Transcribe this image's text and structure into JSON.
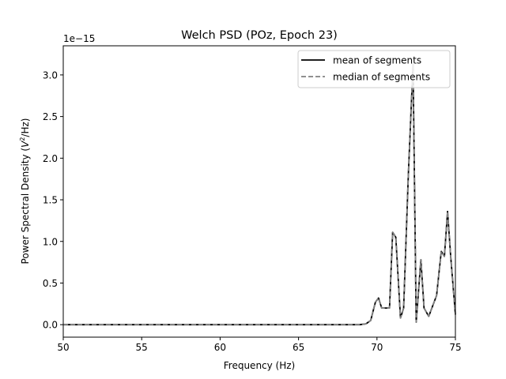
{
  "chart_data": {
    "type": "line",
    "title": "Welch PSD (POz, Epoch 23)",
    "xlabel": "Frequency (Hz)",
    "ylabel_main": "Power Spectral Density (",
    "ylabel_unit_base": "V",
    "ylabel_unit_exp": "2",
    "ylabel_unit_tail": "/Hz)",
    "offset_text": "1e−15",
    "xlim": [
      50,
      75
    ],
    "ylim": [
      -0.15,
      3.35
    ],
    "y_scale_factor": "1e-15",
    "xticks": [
      50,
      55,
      60,
      65,
      70,
      75
    ],
    "xtick_labels": [
      "50",
      "55",
      "60",
      "65",
      "70",
      "75"
    ],
    "yticks": [
      0.0,
      0.5,
      1.0,
      1.5,
      2.0,
      2.5,
      3.0
    ],
    "ytick_labels": [
      "0.0",
      "0.5",
      "1.0",
      "1.5",
      "2.0",
      "2.5",
      "3.0"
    ],
    "grid": false,
    "legend_position": "top-right",
    "series": [
      {
        "name": "mean of segments",
        "color": "#000000",
        "style": "solid",
        "x": [
          50,
          51,
          52,
          53,
          54,
          55,
          56,
          57,
          58,
          59,
          60,
          61,
          62,
          63,
          64,
          65,
          66,
          67,
          68,
          68.9,
          69.3,
          69.6,
          69.9,
          70.1,
          70.3,
          70.5,
          70.8,
          71.0,
          71.2,
          71.5,
          71.7,
          72.0,
          72.3,
          72.5,
          72.8,
          73.0,
          73.3,
          73.8,
          74.1,
          74.3,
          74.5,
          74.7,
          75.0
        ],
        "values": [
          0,
          0,
          0,
          0,
          0,
          0,
          0,
          0,
          0,
          0,
          0,
          0,
          0,
          0,
          0,
          0,
          0,
          0,
          0,
          0.0,
          0.01,
          0.05,
          0.27,
          0.32,
          0.2,
          0.2,
          0.2,
          1.11,
          1.05,
          0.08,
          0.2,
          1.8,
          3.13,
          0.03,
          0.78,
          0.2,
          0.1,
          0.35,
          0.88,
          0.82,
          1.36,
          0.82,
          0.12
        ]
      },
      {
        "name": "median of segments",
        "color": "#808080",
        "style": "dashed",
        "x": [
          50,
          51,
          52,
          53,
          54,
          55,
          56,
          57,
          58,
          59,
          60,
          61,
          62,
          63,
          64,
          65,
          66,
          67,
          68,
          68.9,
          69.3,
          69.6,
          69.9,
          70.1,
          70.3,
          70.5,
          70.8,
          71.0,
          71.2,
          71.5,
          71.7,
          72.0,
          72.3,
          72.5,
          72.8,
          73.0,
          73.3,
          73.8,
          74.1,
          74.3,
          74.5,
          74.7,
          75.0
        ],
        "values": [
          0,
          0,
          0,
          0,
          0,
          0,
          0,
          0,
          0,
          0,
          0,
          0,
          0,
          0,
          0,
          0,
          0,
          0,
          0,
          0.0,
          0.01,
          0.05,
          0.27,
          0.32,
          0.2,
          0.2,
          0.2,
          1.11,
          1.05,
          0.08,
          0.2,
          1.8,
          3.13,
          0.03,
          0.78,
          0.2,
          0.1,
          0.35,
          0.88,
          0.82,
          1.36,
          0.82,
          0.12
        ]
      }
    ]
  }
}
